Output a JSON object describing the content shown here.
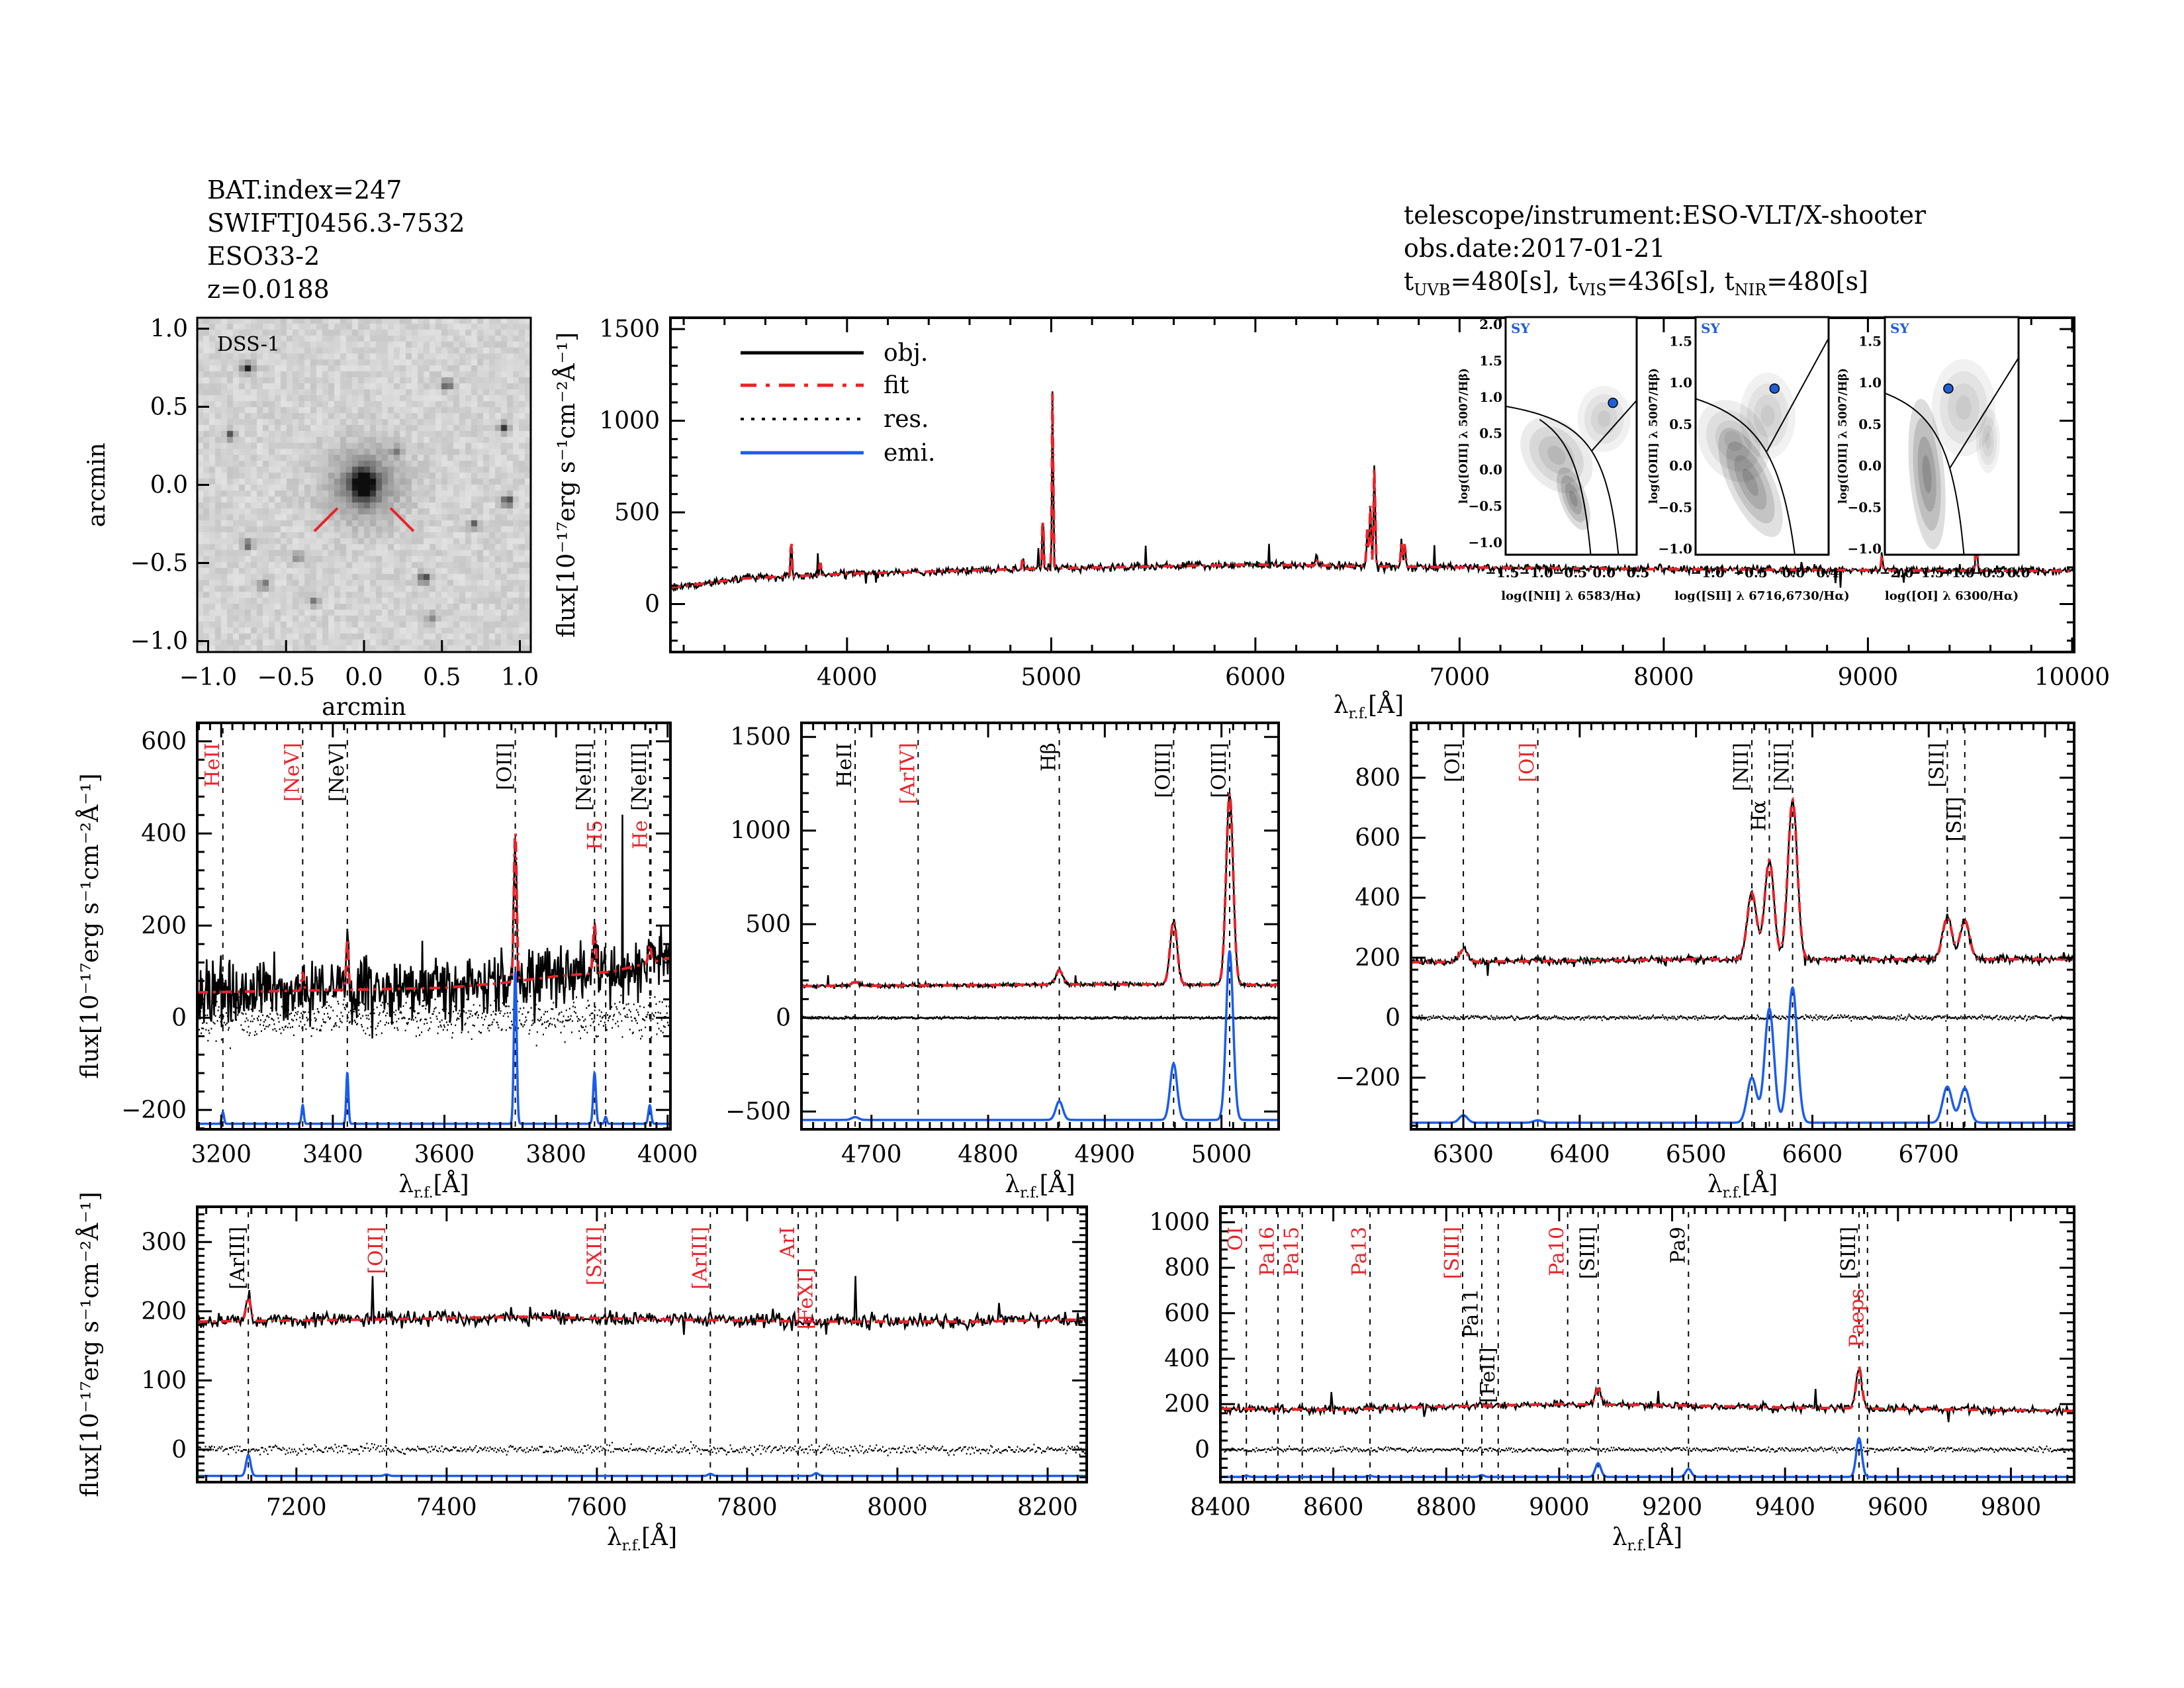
{
  "header": {
    "left": [
      "BAT.index=247",
      "SWIFTJ0456.3-7532",
      "ESO33-2",
      "z=0.0188"
    ],
    "right": [
      "telescope/instrument:ESO-VLT/X-shooter",
      "obs.date:2017-01-21"
    ],
    "exposures": [
      {
        "t": "t",
        "sub": "UVB",
        "value": "=480[s],"
      },
      {
        "t": "t",
        "sub": "VIS",
        "value": "=436[s],"
      },
      {
        "t": "t",
        "sub": "NIR",
        "value": "=480[s]"
      }
    ]
  },
  "image_panel": {
    "label": "DSS-1",
    "xlabel": "arcmin",
    "ylabel": "arcmin",
    "xticks": [
      "−1.0",
      "−0.5",
      "0.0",
      "0.5",
      "1.0"
    ],
    "yticks": [
      "−1.0",
      "−0.5",
      "0.0",
      "0.5",
      "1.0"
    ],
    "marker_color": "#e8232a"
  },
  "labels": {
    "flux": "flux[10⁻¹⁷erg s⁻¹cm⁻²Å⁻¹]",
    "lambda": "λ",
    "lambda_sub": "r.f.",
    "lambda_unit": "[Å]"
  },
  "legend": [
    {
      "label": "obj.",
      "color": "#000000",
      "style": "solid"
    },
    {
      "label": "fit",
      "color": "#e8232a",
      "style": "dash-dot"
    },
    {
      "label": "res.",
      "color": "#000000",
      "style": "dotted"
    },
    {
      "label": "emi.",
      "color": "#1a5cf0",
      "style": "solid"
    }
  ],
  "colors": {
    "obj": "#000000",
    "fit": "#e8232a",
    "res": "#000000",
    "emi": "#1a5cf0",
    "marker_red": "#e8232a",
    "marker_black": "#000000",
    "bpt_point": "#1f5fd6"
  },
  "bpt": [
    {
      "tag": "SY",
      "xlabel": "log([NII] λ 6583/Hα)",
      "ylabel": "log([OIII] λ 5007/Hβ)",
      "xlim": [
        -1.45,
        0.48
      ],
      "ylim": [
        -1.17,
        2.1
      ],
      "xticks": [
        -1.5,
        -1.0,
        -0.5,
        0.0,
        0.5
      ],
      "yticks": [
        -1.0,
        -0.5,
        0.0,
        0.5,
        1.0,
        1.5,
        2.0
      ],
      "point": [
        0.13,
        0.92
      ]
    },
    {
      "tag": "SY",
      "xlabel": "log([SII] λ 6716,6730/Hα)",
      "ylabel": "log([OIII] λ 5007/Hβ)",
      "xlim": [
        -1.14,
        0.41
      ],
      "ylim": [
        -1.07,
        1.79
      ],
      "xticks": [
        -1.0,
        -0.5,
        0.0,
        0.4
      ],
      "yticks": [
        -1.0,
        -0.5,
        0.0,
        0.5,
        1.0,
        1.5
      ],
      "point": [
        -0.22,
        0.93
      ]
    },
    {
      "tag": "SY",
      "xlabel": "log([OI] λ 6300/Hα)",
      "ylabel": "log([OIII] λ 5007/Hβ)",
      "xlim": [
        -2.19,
        0.0
      ],
      "ylim": [
        -1.07,
        1.79
      ],
      "xticks": [
        -2.0,
        -1.5,
        -1.0,
        -0.5,
        0.0
      ],
      "yticks": [
        -1.0,
        -0.5,
        0.0,
        0.5,
        1.0,
        1.5
      ],
      "point": [
        -1.15,
        0.93
      ]
    }
  ],
  "chart_data": [
    {
      "type": "line",
      "panel": "full",
      "xlim": [
        3135,
        10010
      ],
      "ylim": [
        -262,
        1562
      ],
      "xticks": [
        4000,
        5000,
        6000,
        7000,
        8000,
        9000,
        10000
      ],
      "yticks": [
        0,
        500,
        1000,
        1500
      ],
      "continuum": [
        [
          3135,
          90
        ],
        [
          3500,
          140
        ],
        [
          4000,
          165
        ],
        [
          4500,
          180
        ],
        [
          5000,
          195
        ],
        [
          6000,
          215
        ],
        [
          7000,
          200
        ],
        [
          8000,
          190
        ],
        [
          9000,
          185
        ],
        [
          10010,
          180
        ]
      ],
      "lines": [
        [
          3727,
          230,
          3
        ],
        [
          3869,
          80,
          3
        ],
        [
          4861,
          80,
          3
        ],
        [
          4959,
          330,
          3
        ],
        [
          5007,
          1010,
          3
        ],
        [
          6300,
          40,
          4
        ],
        [
          6548,
          200,
          4
        ],
        [
          6563,
          330,
          4
        ],
        [
          6583,
          540,
          4
        ],
        [
          6716,
          140,
          4
        ],
        [
          6731,
          130,
          4
        ],
        [
          9069,
          70,
          4
        ],
        [
          9531,
          180,
          4
        ]
      ],
      "emi_baseline": null,
      "emi_lines": [],
      "markers": []
    },
    {
      "type": "line",
      "panel": "3150-4000",
      "xlim": [
        3157,
        4005
      ],
      "ylim": [
        -242,
        640
      ],
      "xticks": [
        3200,
        3400,
        3600,
        3800,
        4000
      ],
      "yticks": [
        -200,
        0,
        200,
        400,
        600
      ],
      "continuum": [
        [
          3157,
          55
        ],
        [
          3400,
          60
        ],
        [
          3600,
          65
        ],
        [
          3700,
          75
        ],
        [
          3800,
          90
        ],
        [
          3900,
          100
        ],
        [
          4005,
          130
        ]
      ],
      "lines": [
        [
          3346,
          40,
          2
        ],
        [
          3426,
          110,
          2
        ],
        [
          3727,
          330,
          2.5
        ],
        [
          3869,
          110,
          2.5
        ],
        [
          3968,
          40,
          2.5
        ]
      ],
      "emi_baseline": -230,
      "emi_lines": [
        [
          3203,
          25,
          2
        ],
        [
          3346,
          40,
          2
        ],
        [
          3426,
          110,
          2
        ],
        [
          3727,
          330,
          2.5
        ],
        [
          3869,
          110,
          2.5
        ],
        [
          3889,
          15,
          2
        ],
        [
          3968,
          40,
          2.5
        ]
      ],
      "markers": [
        {
          "label": "HeII",
          "wavelength": 3203,
          "color": "red"
        },
        {
          "label": "[NeV]",
          "wavelength": 3346,
          "color": "red"
        },
        {
          "label": "[NeV]",
          "wavelength": 3426,
          "color": "black"
        },
        {
          "label": "[OII]",
          "wavelength": 3727,
          "color": "black"
        },
        {
          "label": "[NeIII]",
          "wavelength": 3869,
          "color": "black"
        },
        {
          "label": "H5",
          "wavelength": 3889,
          "color": "red"
        },
        {
          "label": "[NeIII]",
          "wavelength": 3968,
          "color": "black"
        },
        {
          "label": "He",
          "wavelength": 3970,
          "color": "red"
        }
      ]
    },
    {
      "type": "line",
      "panel": "4650-5050",
      "xlim": [
        4640,
        5049
      ],
      "ylim": [
        -595,
        1575
      ],
      "xticks": [
        4700,
        4800,
        4900,
        5000
      ],
      "yticks": [
        -500,
        0,
        500,
        1000,
        1500
      ],
      "continuum": [
        [
          4640,
          170
        ],
        [
          4800,
          175
        ],
        [
          4900,
          180
        ],
        [
          5049,
          175
        ]
      ],
      "lines": [
        [
          4686,
          20,
          3
        ],
        [
          4861,
          75,
          3
        ],
        [
          4959,
          340,
          3
        ],
        [
          5007,
          1020,
          3
        ]
      ],
      "emi_baseline": -545,
      "emi_lines": [
        [
          4686,
          15,
          3
        ],
        [
          4861,
          100,
          3
        ],
        [
          4959,
          300,
          3
        ],
        [
          5007,
          900,
          3
        ]
      ],
      "markers": [
        {
          "label": "HeII",
          "wavelength": 4686,
          "color": "black"
        },
        {
          "label": "[ArIV]",
          "wavelength": 4740,
          "color": "red"
        },
        {
          "label": "Hβ",
          "wavelength": 4861,
          "color": "black"
        },
        {
          "label": "[OIII]",
          "wavelength": 4959,
          "color": "black"
        },
        {
          "label": "[OIII]",
          "wavelength": 5007,
          "color": "black"
        }
      ]
    },
    {
      "type": "line",
      "panel": "6250-6800",
      "xlim": [
        6255,
        6825
      ],
      "ylim": [
        -372,
        983
      ],
      "xticks": [
        6300,
        6400,
        6500,
        6600,
        6700
      ],
      "yticks": [
        -200,
        0,
        200,
        400,
        600,
        800
      ],
      "continuum": [
        [
          6255,
          185
        ],
        [
          6400,
          190
        ],
        [
          6500,
          195
        ],
        [
          6650,
          195
        ],
        [
          6825,
          195
        ]
      ],
      "lines": [
        [
          6300,
          40,
          3.5
        ],
        [
          6548,
          220,
          4
        ],
        [
          6563,
          330,
          4
        ],
        [
          6583,
          530,
          4
        ],
        [
          6716,
          140,
          4
        ],
        [
          6731,
          130,
          4
        ]
      ],
      "emi_baseline": -350,
      "emi_lines": [
        [
          6300,
          25,
          3.5
        ],
        [
          6364,
          8,
          3.5
        ],
        [
          6548,
          150,
          4
        ],
        [
          6563,
          380,
          4
        ],
        [
          6583,
          450,
          4
        ],
        [
          6716,
          120,
          4
        ],
        [
          6731,
          115,
          4
        ]
      ],
      "markers": [
        {
          "label": "[OI]",
          "wavelength": 6300,
          "color": "black"
        },
        {
          "label": "[OI]",
          "wavelength": 6364,
          "color": "red"
        },
        {
          "label": "[NII]",
          "wavelength": 6548,
          "color": "black"
        },
        {
          "label": "Hα",
          "wavelength": 6563,
          "color": "black"
        },
        {
          "label": "[NII]",
          "wavelength": 6583,
          "color": "black"
        },
        {
          "label": "[SII]",
          "wavelength": 6716,
          "color": "black"
        },
        {
          "label": "[SII]",
          "wavelength": 6731,
          "color": "black"
        }
      ]
    },
    {
      "type": "line",
      "panel": "7070-8250",
      "xlim": [
        7068,
        8252
      ],
      "ylim": [
        -47,
        351
      ],
      "xticks": [
        7200,
        7400,
        7600,
        7800,
        8000,
        8200
      ],
      "yticks": [
        0,
        100,
        200,
        300
      ],
      "continuum": [
        [
          7068,
          185
        ],
        [
          7300,
          188
        ],
        [
          7500,
          192
        ],
        [
          7700,
          188
        ],
        [
          7900,
          185
        ],
        [
          8100,
          185
        ],
        [
          8252,
          188
        ]
      ],
      "lines": [
        [
          7136,
          35,
          3
        ]
      ],
      "emi_baseline": -38,
      "emi_lines": [
        [
          7136,
          30,
          3
        ],
        [
          7320,
          2,
          3
        ],
        [
          7751,
          3,
          3
        ],
        [
          7892,
          4,
          3
        ]
      ],
      "markers": [
        {
          "label": "[ArIII]",
          "wavelength": 7136,
          "color": "black"
        },
        {
          "label": "[OII]",
          "wavelength": 7320,
          "color": "red"
        },
        {
          "label": "[SXII]",
          "wavelength": 7611,
          "color": "red"
        },
        {
          "label": "[ArIII]",
          "wavelength": 7751,
          "color": "red"
        },
        {
          "label": "ArI",
          "wavelength": 7868,
          "color": "red"
        },
        {
          "label": "[FeXI]",
          "wavelength": 7892,
          "color": "red"
        }
      ]
    },
    {
      "type": "line",
      "panel": "8400-9900",
      "xlim": [
        8400,
        9912
      ],
      "ylim": [
        -143,
        1068
      ],
      "xticks": [
        8400,
        8600,
        8800,
        9000,
        9200,
        9400,
        9600,
        9800
      ],
      "yticks": [
        0,
        200,
        400,
        600,
        800,
        1000
      ],
      "continuum": [
        [
          8400,
          180
        ],
        [
          8600,
          175
        ],
        [
          8800,
          190
        ],
        [
          9000,
          200
        ],
        [
          9200,
          195
        ],
        [
          9400,
          185
        ],
        [
          9912,
          170
        ]
      ],
      "lines": [
        [
          9069,
          70,
          5
        ],
        [
          9531,
          180,
          5
        ]
      ],
      "emi_baseline": -120,
      "emi_lines": [
        [
          8446,
          5,
          4
        ],
        [
          8665,
          5,
          4
        ],
        [
          8863,
          8,
          4
        ],
        [
          9069,
          60,
          5
        ],
        [
          9229,
          35,
          5
        ],
        [
          9531,
          170,
          5
        ]
      ],
      "markers": [
        {
          "label": "OI",
          "wavelength": 8446,
          "color": "red"
        },
        {
          "label": "Pa16",
          "wavelength": 8502,
          "color": "red"
        },
        {
          "label": "Pa15",
          "wavelength": 8545,
          "color": "red"
        },
        {
          "label": "Pa13",
          "wavelength": 8665,
          "color": "red"
        },
        {
          "label": "[SIII]",
          "wavelength": 8829,
          "color": "red"
        },
        {
          "label": "Pa11",
          "wavelength": 8863,
          "color": "black"
        },
        {
          "label": "[FeII]",
          "wavelength": 8892,
          "color": "black"
        },
        {
          "label": "Pa10",
          "wavelength": 9015,
          "color": "red"
        },
        {
          "label": "[SIII]",
          "wavelength": 9069,
          "color": "black"
        },
        {
          "label": "Pa9",
          "wavelength": 9229,
          "color": "black"
        },
        {
          "label": "[SIII]",
          "wavelength": 9531,
          "color": "black"
        },
        {
          "label": "Paeps",
          "wavelength": 9546,
          "color": "red"
        }
      ]
    }
  ]
}
